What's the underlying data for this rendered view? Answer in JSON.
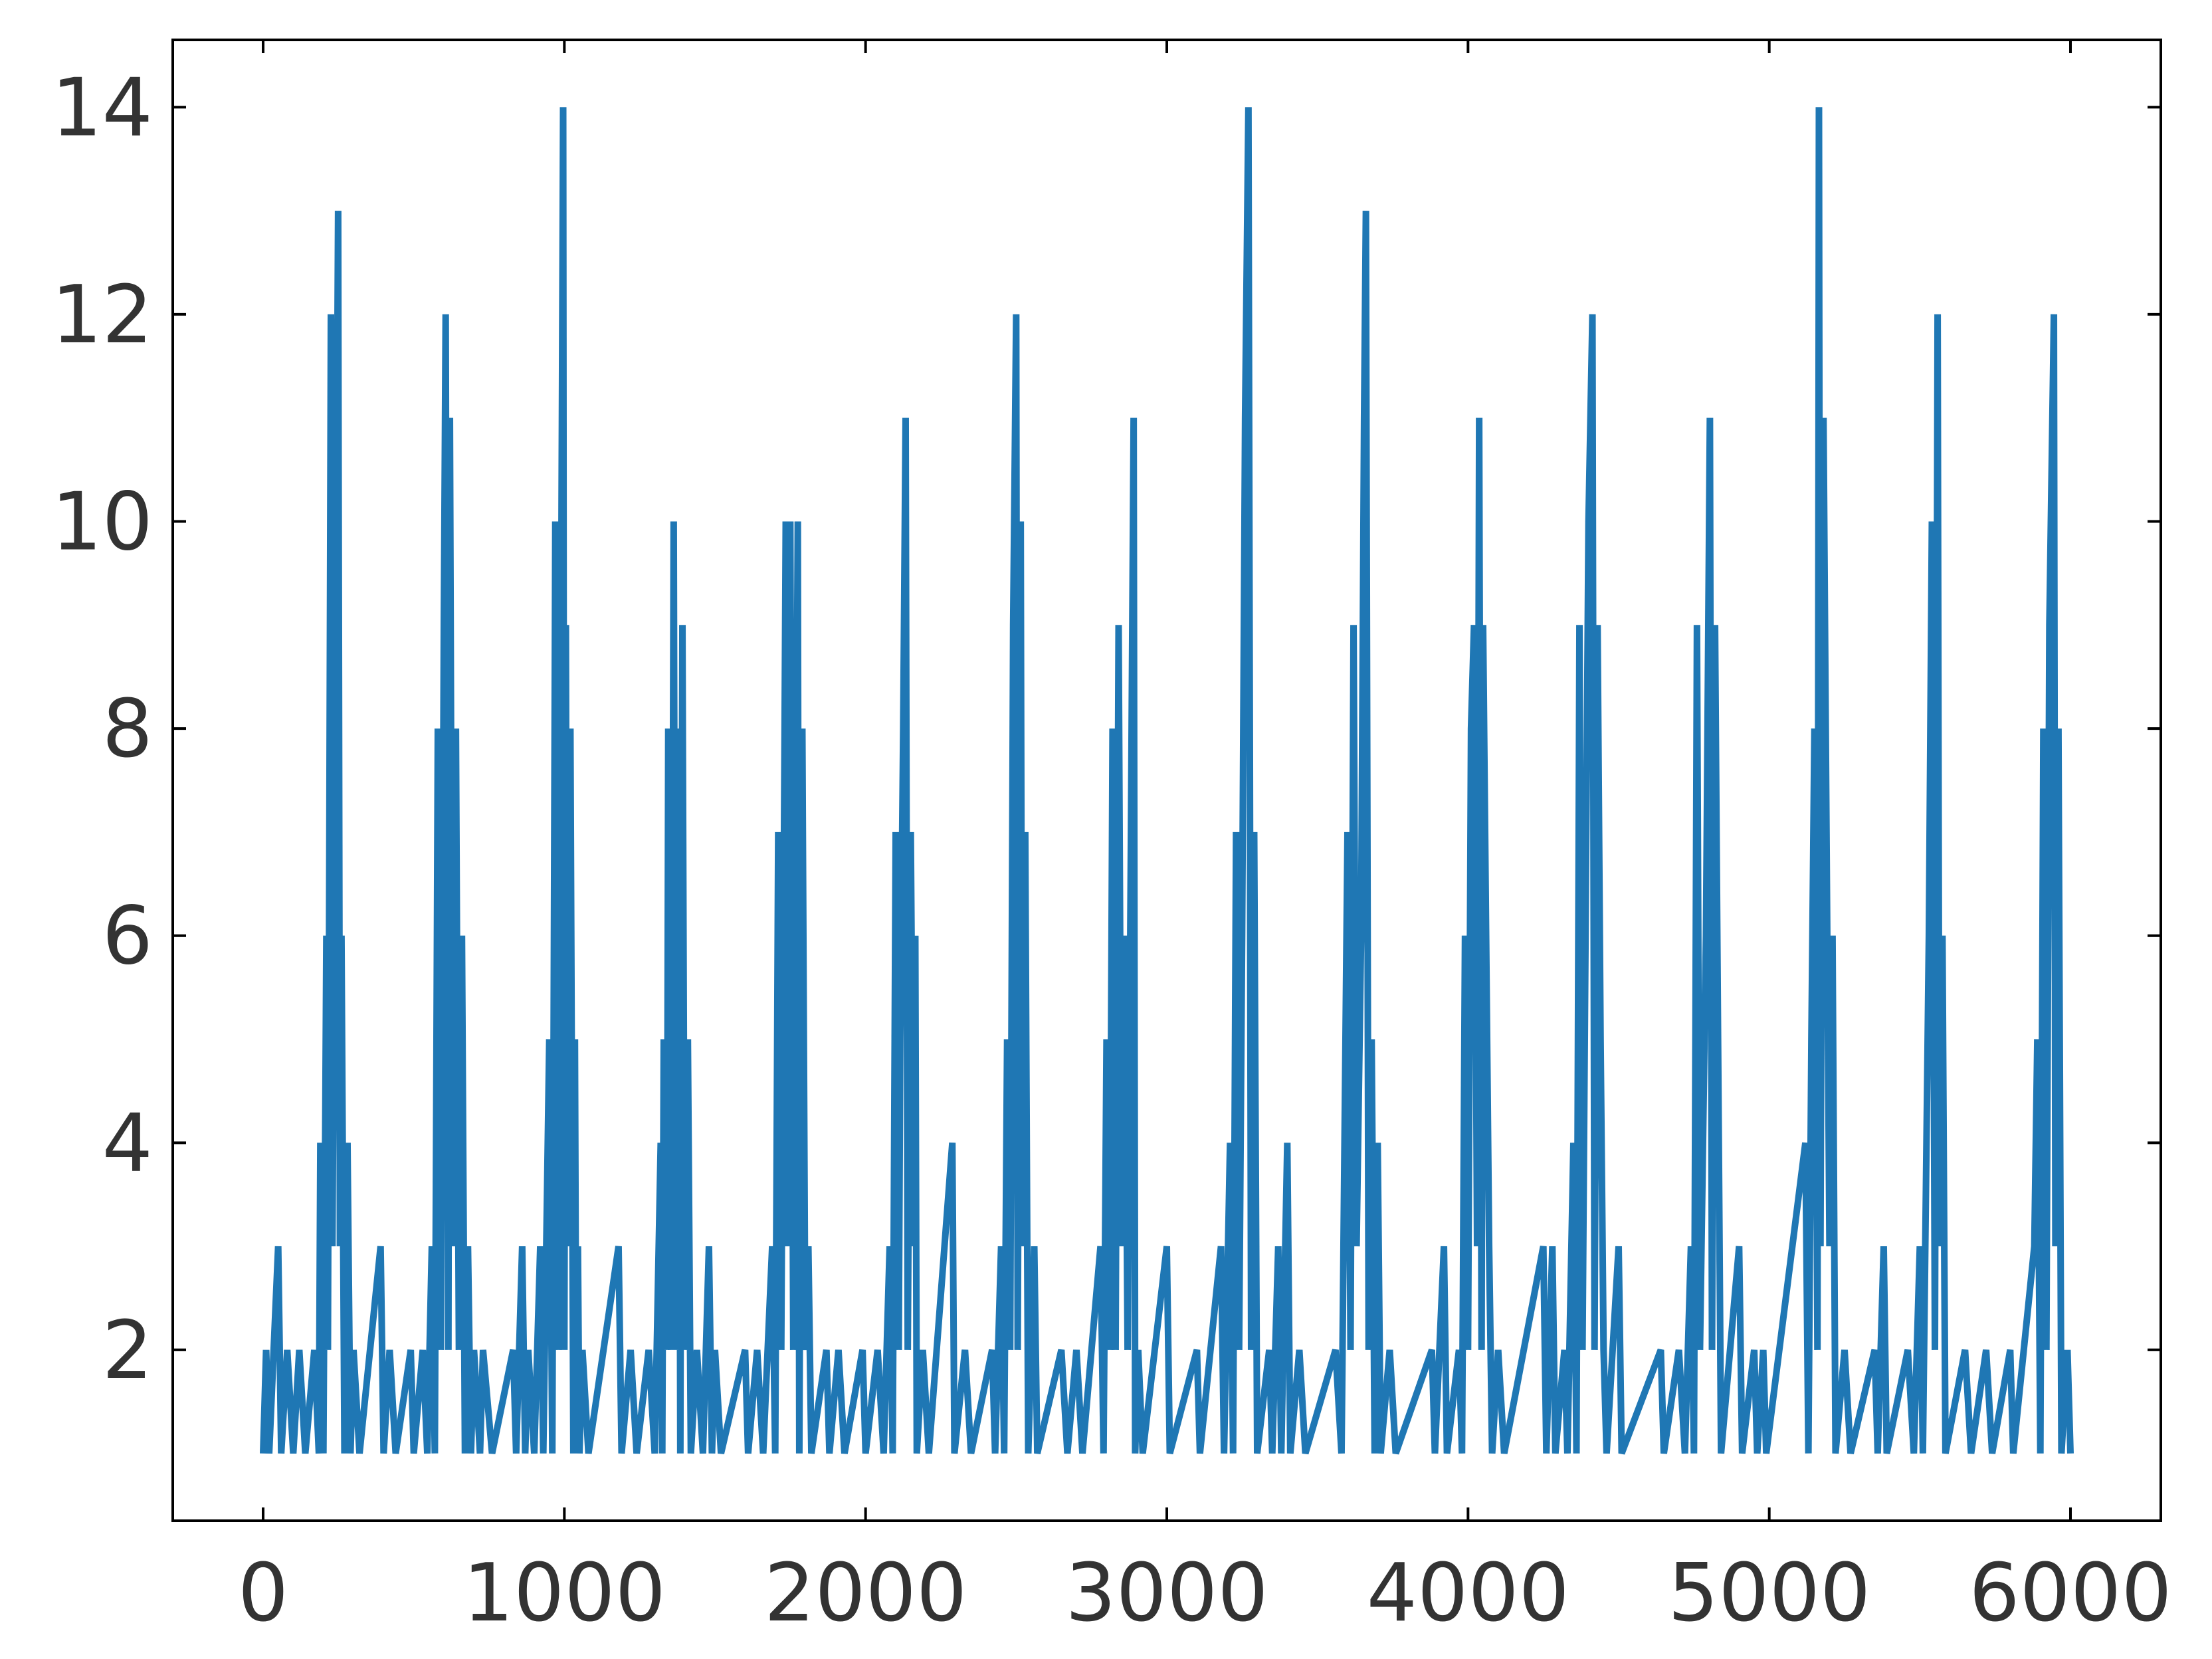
{
  "chart_data": {
    "type": "line",
    "x": [
      0,
      10,
      20,
      50,
      60,
      80,
      100,
      120,
      140,
      170,
      185,
      190,
      200,
      210,
      215,
      225,
      230,
      240,
      249,
      255,
      260,
      270,
      280,
      290,
      300,
      320,
      390,
      400,
      420,
      440,
      490,
      500,
      530,
      545,
      560,
      570,
      580,
      590,
      600,
      606,
      615,
      620,
      630,
      640,
      650,
      660,
      670,
      680,
      690,
      700,
      720,
      730,
      760,
      830,
      840,
      860,
      870,
      880,
      900,
      920,
      930,
      950,
      960,
      970,
      980,
      996,
      1000,
      1005,
      1010,
      1020,
      1030,
      1035,
      1040,
      1045,
      1050,
      1060,
      1080,
      1180,
      1190,
      1220,
      1240,
      1280,
      1300,
      1320,
      1325,
      1330,
      1340,
      1345,
      1355,
      1363,
      1370,
      1380,
      1385,
      1392,
      1400,
      1410,
      1420,
      1440,
      1460,
      1480,
      1490,
      1500,
      1520,
      1600,
      1610,
      1640,
      1660,
      1690,
      1700,
      1710,
      1720,
      1735,
      1743,
      1750,
      1760,
      1775,
      1780,
      1790,
      1800,
      1810,
      1820,
      1870,
      1880,
      1910,
      1930,
      1990,
      2000,
      2040,
      2060,
      2080,
      2090,
      2100,
      2110,
      2115,
      2125,
      2133,
      2140,
      2150,
      2160,
      2165,
      2170,
      2190,
      2210,
      2288,
      2295,
      2330,
      2350,
      2420,
      2430,
      2450,
      2460,
      2470,
      2480,
      2490,
      2500,
      2505,
      2515,
      2520,
      2530,
      2540,
      2560,
      2570,
      2650,
      2670,
      2700,
      2720,
      2780,
      2790,
      2800,
      2810,
      2820,
      2830,
      2840,
      2850,
      2860,
      2870,
      2890,
      2895,
      2905,
      2920,
      3000,
      3010,
      3100,
      3110,
      3180,
      3190,
      3210,
      3220,
      3230,
      3240,
      3250,
      3260,
      3271,
      3280,
      3290,
      3300,
      3340,
      3350,
      3370,
      3380,
      3400,
      3410,
      3440,
      3460,
      3560,
      3580,
      3600,
      3610,
      3620,
      3630,
      3645,
      3655,
      3661,
      3670,
      3680,
      3690,
      3700,
      3710,
      3740,
      3760,
      3880,
      3890,
      3920,
      3930,
      3970,
      3980,
      3990,
      4000,
      4010,
      4020,
      4030,
      4037,
      4045,
      4050,
      4060,
      4070,
      4080,
      4100,
      4120,
      4250,
      4260,
      4280,
      4290,
      4320,
      4330,
      4350,
      4360,
      4370,
      4380,
      4400,
      4413,
      4420,
      4430,
      4440,
      4450,
      4460,
      4500,
      4510,
      4640,
      4650,
      4700,
      4720,
      4740,
      4750,
      4760,
      4770,
      4790,
      4803,
      4810,
      4820,
      4830,
      4840,
      4900,
      4910,
      4950,
      4960,
      4980,
      4990,
      5120,
      5130,
      5140,
      5150,
      5160,
      5165,
      5170,
      5180,
      5190,
      5200,
      5210,
      5220,
      5250,
      5270,
      5350,
      5360,
      5380,
      5390,
      5460,
      5480,
      5500,
      5510,
      5530,
      5540,
      5550,
      5559,
      5565,
      5575,
      5585,
      5650,
      5670,
      5720,
      5740,
      5800,
      5810,
      5880,
      5890,
      5900,
      5910,
      5920,
      5930,
      5945,
      5950,
      5960,
      5970,
      5990,
      6000
    ],
    "series": [
      {
        "color": "#1f77b4",
        "values": [
          1,
          2,
          1,
          3,
          1,
          2,
          1,
          2,
          1,
          2,
          1,
          4,
          1,
          6,
          2,
          12,
          3,
          8,
          13,
          3,
          6,
          1,
          4,
          1,
          2,
          1,
          3,
          1,
          2,
          1,
          2,
          1,
          2,
          1,
          3,
          1,
          8,
          2,
          9,
          12,
          2,
          11,
          3,
          8,
          2,
          6,
          1,
          3,
          1,
          2,
          1,
          2,
          1,
          2,
          1,
          3,
          1,
          2,
          1,
          3,
          1,
          5,
          1,
          10,
          2,
          14,
          2,
          9,
          3,
          8,
          1,
          5,
          1,
          3,
          1,
          2,
          1,
          3,
          1,
          2,
          1,
          2,
          1,
          4,
          1,
          5,
          2,
          8,
          2,
          10,
          2,
          8,
          1,
          9,
          2,
          5,
          1,
          2,
          1,
          3,
          1,
          2,
          1,
          2,
          1,
          2,
          1,
          3,
          1,
          7,
          2,
          10,
          3,
          10,
          2,
          10,
          1,
          8,
          2,
          3,
          1,
          2,
          1,
          2,
          1,
          2,
          1,
          2,
          1,
          3,
          1,
          7,
          2,
          5,
          8,
          11,
          2,
          7,
          3,
          6,
          1,
          2,
          1,
          4,
          1,
          2,
          1,
          2,
          1,
          3,
          1,
          5,
          2,
          9,
          12,
          2,
          10,
          3,
          7,
          1,
          3,
          1,
          2,
          1,
          2,
          1,
          3,
          1,
          5,
          2,
          8,
          2,
          9,
          3,
          6,
          2,
          11,
          1,
          2,
          1,
          3,
          1,
          2,
          1,
          3,
          1,
          4,
          1,
          7,
          2,
          6,
          11,
          14,
          2,
          7,
          1,
          2,
          1,
          3,
          1,
          4,
          1,
          2,
          1,
          2,
          1,
          7,
          2,
          9,
          3,
          6,
          11,
          13,
          2,
          5,
          1,
          4,
          1,
          2,
          1,
          2,
          1,
          3,
          1,
          2,
          1,
          6,
          2,
          8,
          9,
          3,
          11,
          2,
          9,
          6,
          3,
          1,
          2,
          1,
          3,
          1,
          3,
          1,
          2,
          1,
          4,
          1,
          9,
          2,
          10,
          12,
          2,
          9,
          5,
          2,
          1,
          3,
          1,
          2,
          1,
          2,
          1,
          3,
          1,
          9,
          2,
          6,
          11,
          2,
          9,
          5,
          1,
          3,
          1,
          2,
          1,
          2,
          1,
          4,
          1,
          5,
          8,
          2,
          14,
          3,
          11,
          7,
          3,
          6,
          1,
          2,
          1,
          2,
          1,
          3,
          1,
          2,
          1,
          3,
          1,
          6,
          10,
          2,
          12,
          3,
          6,
          1,
          2,
          1,
          2,
          1,
          2,
          1,
          3,
          5,
          1,
          8,
          2,
          9,
          12,
          3,
          8,
          1,
          2,
          1
        ]
      }
    ],
    "xlim": [
      -300,
      6300
    ],
    "ylim": [
      0.35,
      14.65
    ],
    "xticks": [
      0,
      1000,
      2000,
      3000,
      4000,
      5000,
      6000
    ],
    "yticks": [
      2,
      4,
      6,
      8,
      10,
      12,
      14
    ],
    "grid": false
  }
}
